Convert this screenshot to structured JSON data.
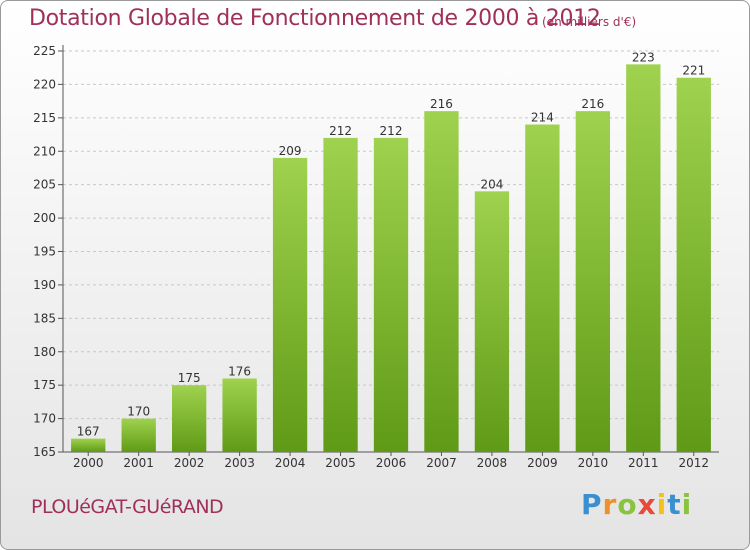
{
  "title": "Dotation Globale de Fonctionnement de 2000 à 2012",
  "subtitle": "(en milliers d'€)",
  "commune": "PLOUéGAT-GUéRAND",
  "logo": {
    "text": "Proxiti",
    "letters": [
      {
        "ch": "P",
        "color": "#3a8fd0"
      },
      {
        "ch": "r",
        "color": "#f0902a"
      },
      {
        "ch": "o",
        "color": "#8ac43f"
      },
      {
        "ch": "x",
        "color": "#e84a3a"
      },
      {
        "ch": "i",
        "color": "#f3c21a"
      },
      {
        "ch": "t",
        "color": "#3a8fd0"
      },
      {
        "ch": "i",
        "color": "#8ac43f"
      }
    ]
  },
  "colors": {
    "bar_top": "#9fd24e",
    "bar_bottom": "#5f9a16",
    "grid": "#c8c8c8",
    "text": "#333333",
    "accent": "#a0305a"
  },
  "chart_data": {
    "type": "bar",
    "title": "Dotation Globale de Fonctionnement de 2000 à 2012",
    "subtitle": "(en milliers d'€)",
    "categories": [
      "2000",
      "2001",
      "2002",
      "2003",
      "2004",
      "2005",
      "2006",
      "2007",
      "2008",
      "2009",
      "2010",
      "2011",
      "2012"
    ],
    "values": [
      167,
      170,
      175,
      176,
      209,
      212,
      212,
      216,
      204,
      214,
      216,
      223,
      221
    ],
    "ylim": [
      165,
      225
    ],
    "yticks": [
      165,
      170,
      175,
      180,
      185,
      190,
      195,
      200,
      205,
      210,
      215,
      220,
      225
    ],
    "grid": true,
    "data_labels": true,
    "legend": "none"
  }
}
